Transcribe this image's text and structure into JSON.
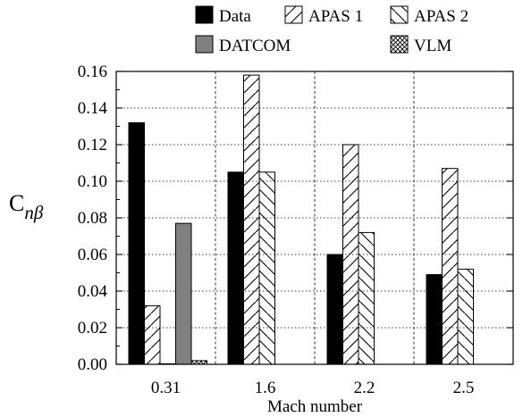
{
  "chart_data": {
    "type": "bar",
    "categories": [
      "0.31",
      "1.6",
      "2.2",
      "2.5"
    ],
    "series": [
      {
        "name": "Data",
        "values": [
          0.132,
          0.105,
          0.06,
          0.049
        ],
        "pattern": "solid-black"
      },
      {
        "name": "APAS 1",
        "values": [
          0.032,
          0.158,
          0.12,
          0.107
        ],
        "pattern": "hatch-forward"
      },
      {
        "name": "APAS 2",
        "values": [
          0.0,
          0.105,
          0.072,
          0.052
        ],
        "pattern": "hatch-back"
      },
      {
        "name": "DATCOM",
        "values": [
          0.077,
          null,
          null,
          null
        ],
        "pattern": "solid-gray"
      },
      {
        "name": "VLM",
        "values": [
          0.002,
          null,
          null,
          null
        ],
        "pattern": "crosshatch"
      }
    ],
    "xlabel": "Mach number",
    "ylabel": "C",
    "ylabel_subscript": "nβ",
    "ylim": [
      0.0,
      0.16
    ],
    "yticks": [
      "0.00",
      "0.02",
      "0.04",
      "0.06",
      "0.08",
      "0.10",
      "0.12",
      "0.14",
      "0.16"
    ],
    "grid": "horizontal-dotted-and-category-dividers",
    "legend_placement": "top"
  }
}
